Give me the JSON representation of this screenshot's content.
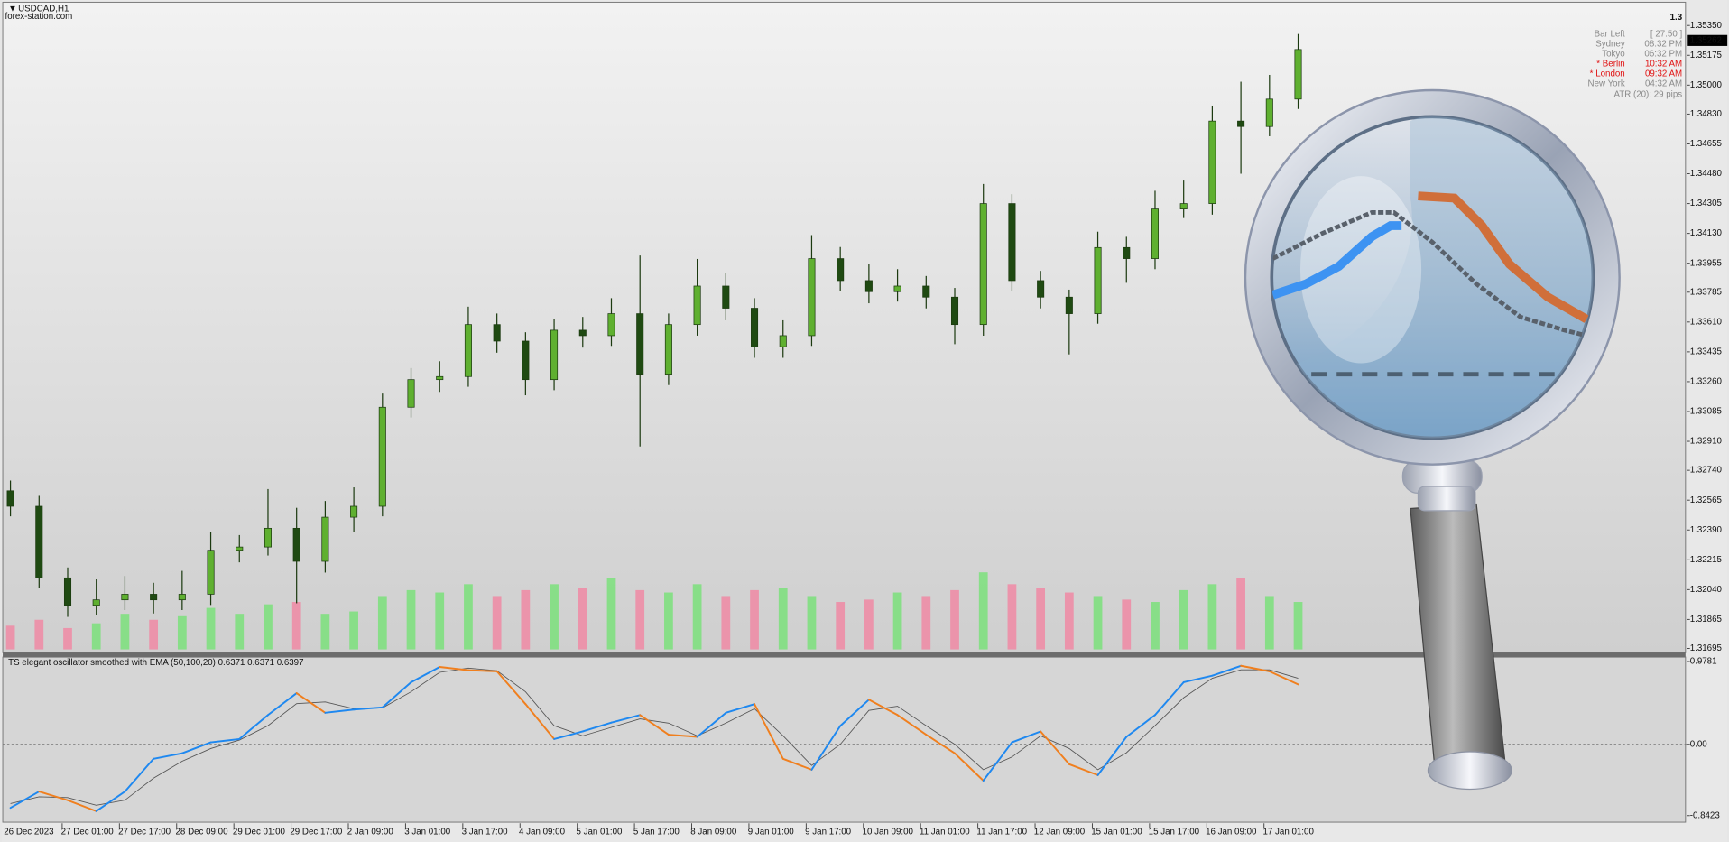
{
  "symbol": "USDCAD,H1",
  "watermark": "forex-station.com",
  "info": {
    "big_price": "1.3",
    "rows": [
      {
        "label": "Bar Left",
        "value": "[ 27:50 ]"
      },
      {
        "label": "Sydney",
        "value": "08:32 PM"
      },
      {
        "label": "Tokyo",
        "value": "06:32 PM"
      },
      {
        "label": "* Berlin",
        "value": "10:32 AM"
      },
      {
        "label": "* London",
        "value": "09:32 AM"
      },
      {
        "label": "New York",
        "value": "04:32 AM"
      }
    ],
    "atr": "ATR (20): 29 pips"
  },
  "chart_data": [
    {
      "type": "candlestick",
      "categories": [
        "26 Dec 2023",
        null,
        "27 Dec 01:00",
        null,
        "27 Dec 17:00",
        null,
        "28 Dec 09:00",
        null,
        "29 Dec 01:00",
        null,
        "29 Dec 17:00",
        null,
        "2 Jan 09:00",
        null,
        "3 Jan 01:00",
        null,
        "3 Jan 17:00",
        null,
        "4 Jan 09:00",
        null,
        "5 Jan 01:00",
        null,
        "5 Jan 17:00",
        null,
        "8 Jan 09:00",
        null,
        "9 Jan 01:00",
        null,
        "9 Jan 17:00",
        null,
        "10 Jan 09:00",
        null,
        "11 Jan 01:00",
        null,
        "11 Jan 17:00",
        null,
        "12 Jan 09:00",
        null,
        "15 Jan 01:00",
        null,
        "15 Jan 17:00",
        null,
        "16 Jan 09:00",
        null,
        "17 Jan 01:00",
        null
      ],
      "open": [
        1.3262,
        1.32529,
        1.32109,
        1.31948,
        1.3198,
        1.32013,
        1.3198,
        1.32013,
        1.32271,
        1.3229,
        1.324,
        1.32206,
        1.32465,
        1.32529,
        1.3311,
        1.33272,
        1.3329,
        1.33595,
        1.33498,
        1.33272,
        1.33562,
        1.3353,
        1.33659,
        1.33304,
        1.33595,
        1.33821,
        1.33691,
        1.33465,
        1.3353,
        1.33982,
        1.33853,
        1.33788,
        1.33821,
        1.33756,
        1.33595,
        1.34305,
        1.33853,
        1.33756,
        1.33659,
        1.34047,
        1.33982,
        1.34273,
        1.34305,
        1.34789,
        1.34757,
        1.34918
      ],
      "high": [
        1.3268,
        1.3259,
        1.3217,
        1.321,
        1.3212,
        1.3208,
        1.3215,
        1.3238,
        1.3236,
        1.3263,
        1.3252,
        1.3256,
        1.3264,
        1.3319,
        1.3334,
        1.3338,
        1.337,
        1.3366,
        1.3355,
        1.3363,
        1.3364,
        1.3375,
        1.34,
        1.3366,
        1.3398,
        1.339,
        1.3375,
        1.3362,
        1.3412,
        1.3405,
        1.3395,
        1.3392,
        1.3388,
        1.3381,
        1.3442,
        1.3436,
        1.3391,
        1.338,
        1.3414,
        1.3411,
        1.3438,
        1.3444,
        1.3488,
        1.3502,
        1.3506,
        1.353
      ],
      "low": [
        1.3247,
        1.3205,
        1.3188,
        1.3189,
        1.3192,
        1.319,
        1.3192,
        1.3195,
        1.322,
        1.3224,
        1.3196,
        1.3214,
        1.3238,
        1.3247,
        1.3305,
        1.332,
        1.3323,
        1.3343,
        1.3318,
        1.3321,
        1.3346,
        1.3347,
        1.3288,
        1.3324,
        1.3353,
        1.3362,
        1.334,
        1.334,
        1.3347,
        1.3379,
        1.3372,
        1.3373,
        1.3369,
        1.3348,
        1.3353,
        1.3379,
        1.3369,
        1.3342,
        1.336,
        1.3384,
        1.3392,
        1.3422,
        1.3424,
        1.3448,
        1.347,
        1.3486
      ],
      "close": [
        1.32529,
        1.32109,
        1.31948,
        1.3198,
        1.32013,
        1.3198,
        1.32013,
        1.32271,
        1.3229,
        1.324,
        1.32206,
        1.32465,
        1.32529,
        1.3311,
        1.33272,
        1.3329,
        1.33595,
        1.33498,
        1.33272,
        1.33562,
        1.3353,
        1.33659,
        1.33304,
        1.33595,
        1.33821,
        1.33691,
        1.33465,
        1.3353,
        1.33982,
        1.33853,
        1.33788,
        1.33821,
        1.33756,
        1.33595,
        1.34305,
        1.33853,
        1.33756,
        1.33659,
        1.34047,
        1.33982,
        1.34273,
        1.34305,
        1.34789,
        1.34757,
        1.34918,
        1.35209
      ],
      "volume": [
        20,
        25,
        18,
        22,
        30,
        25,
        28,
        35,
        30,
        38,
        40,
        30,
        32,
        45,
        50,
        48,
        55,
        45,
        50,
        55,
        52,
        60,
        50,
        48,
        55,
        45,
        50,
        52,
        45,
        40,
        42,
        48,
        45,
        50,
        65,
        55,
        52,
        48,
        45,
        42,
        40,
        50,
        55,
        60,
        45,
        40
      ],
      "up_color": "#5fb030",
      "down_color": "#1f4a12",
      "volume_up_color": "#7be07b",
      "volume_down_color": "#f08aa5",
      "last_price": 1.35262,
      "ylim": [
        1.3167,
        1.3548
      ],
      "yticks": [
        {
          "value": 1.3535,
          "label": "1.35350"
        },
        1.35175,
        {
          "value": 1.35,
          "label": "1.35000"
        },
        {
          "value": 1.3483,
          "label": "1.34830"
        },
        1.34655,
        {
          "value": 1.3448,
          "label": "1.34480"
        },
        1.34305,
        {
          "value": 1.3413,
          "label": "1.34130"
        },
        1.33955,
        1.33785,
        {
          "value": 1.3361,
          "label": "1.33610"
        },
        1.33435,
        {
          "value": 1.3326,
          "label": "1.33260"
        },
        1.33085,
        {
          "value": 1.3291,
          "label": "1.32910"
        },
        {
          "value": 1.3274,
          "label": "1.32740"
        },
        1.32565,
        {
          "value": 1.3239,
          "label": "1.32390"
        },
        1.32215,
        {
          "value": 1.3204,
          "label": "1.32040"
        },
        1.31865,
        1.31695
      ]
    },
    {
      "type": "line",
      "title": "TS elegant oscillator smoothed with EMA (50,100,20) 0.6371 0.6371 0.6397",
      "series": [
        {
          "values": [
            -0.751,
            -0.558,
            -0.661,
            -0.79,
            -0.558,
            -0.171,
            -0.106,
            0.023,
            0.062,
            0.346,
            0.604,
            0.372,
            0.41,
            0.436,
            0.733,
            0.914,
            0.875,
            0.862,
            0.475,
            0.062,
            0.152,
            0.256,
            0.346,
            0.114,
            0.088,
            0.372,
            0.475,
            -0.171,
            -0.3,
            0.217,
            0.527,
            0.346,
            0.114,
            -0.106,
            -0.429,
            0.023,
            0.152,
            -0.235,
            -0.364,
            0.088,
            0.346,
            0.733,
            0.811,
            0.927,
            0.862,
            0.707
          ],
          "up_color": "#1e88f0",
          "down_color": "#f07f1e"
        },
        {
          "values": [
            -0.7,
            -0.62,
            -0.63,
            -0.72,
            -0.66,
            -0.4,
            -0.2,
            -0.05,
            0.05,
            0.22,
            0.48,
            0.5,
            0.42,
            0.43,
            0.62,
            0.85,
            0.9,
            0.87,
            0.62,
            0.22,
            0.1,
            0.2,
            0.3,
            0.25,
            0.1,
            0.25,
            0.42,
            0.1,
            -0.25,
            0,
            0.4,
            0.45,
            0.22,
            0,
            -0.3,
            -0.15,
            0.1,
            -0.05,
            -0.3,
            -0.1,
            0.22,
            0.55,
            0.78,
            0.88,
            0.88,
            0.78
          ],
          "color": "#555555"
        }
      ],
      "ylim": [
        -0.92,
        1.03
      ],
      "yticks": [
        0.9781,
        {
          "value": 0,
          "label": "0.00"
        },
        -0.8423
      ]
    }
  ]
}
